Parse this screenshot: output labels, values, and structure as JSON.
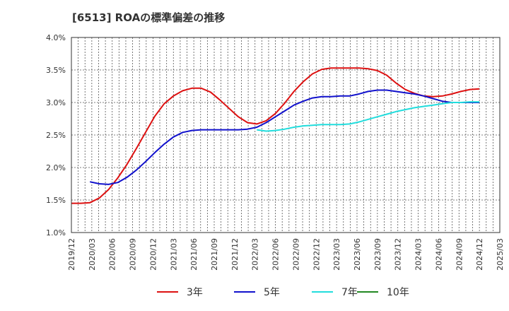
{
  "chart_data": {
    "type": "line",
    "title": "[6513]  ROAの標準偏差の推移",
    "xlabel": "",
    "ylabel": "",
    "x_ticks": [
      "2019/12",
      "2020/03",
      "2020/06",
      "2020/09",
      "2020/12",
      "2021/03",
      "2021/06",
      "2021/09",
      "2021/12",
      "2022/03",
      "2022/06",
      "2022/09",
      "2022/12",
      "2023/03",
      "2023/06",
      "2023/09",
      "2023/12",
      "2024/03",
      "2024/06",
      "2024/09",
      "2024/12",
      "2025/03"
    ],
    "y_ticks": [
      "1.0%",
      "1.5%",
      "2.0%",
      "2.5%",
      "3.0%",
      "3.5%",
      "4.0%"
    ],
    "ylim": [
      1.0,
      4.0
    ],
    "grid": true,
    "legend_position": "bottom",
    "series": [
      {
        "name": "3年",
        "color": "#dd1111",
        "values": [
          1.45,
          1.45,
          1.46,
          1.53,
          1.66,
          1.84,
          2.05,
          2.29,
          2.54,
          2.79,
          2.98,
          3.1,
          3.18,
          3.22,
          3.22,
          3.16,
          3.04,
          2.91,
          2.78,
          2.69,
          2.67,
          2.72,
          2.83,
          2.99,
          3.17,
          3.32,
          3.44,
          3.51,
          3.53,
          3.53,
          3.53,
          3.53,
          3.52,
          3.49,
          3.42,
          3.3,
          3.2,
          3.14,
          3.1,
          3.09,
          3.1,
          3.13,
          3.17,
          3.2,
          3.21
        ]
      },
      {
        "name": "5年",
        "color": "#1111cc",
        "values": [
          null,
          null,
          1.78,
          1.75,
          1.74,
          1.77,
          1.85,
          1.96,
          2.09,
          2.23,
          2.36,
          2.47,
          2.54,
          2.57,
          2.58,
          2.58,
          2.58,
          2.58,
          2.58,
          2.59,
          2.62,
          2.69,
          2.78,
          2.87,
          2.96,
          3.02,
          3.07,
          3.09,
          3.09,
          3.1,
          3.1,
          3.13,
          3.17,
          3.19,
          3.19,
          3.17,
          3.15,
          3.13,
          3.1,
          3.06,
          3.02,
          3.0,
          3.0,
          3.0,
          3.0
        ]
      },
      {
        "name": "7年",
        "color": "#22dddd",
        "values": [
          null,
          null,
          null,
          null,
          null,
          null,
          null,
          null,
          null,
          null,
          null,
          null,
          null,
          null,
          null,
          null,
          null,
          null,
          null,
          null,
          2.58,
          2.56,
          2.57,
          2.59,
          2.62,
          2.64,
          2.65,
          2.66,
          2.66,
          2.66,
          2.67,
          2.7,
          2.74,
          2.78,
          2.82,
          2.86,
          2.89,
          2.92,
          2.94,
          2.96,
          2.98,
          3.0,
          3.0,
          3.01,
          3.01
        ]
      },
      {
        "name": "10年",
        "color": "#228822",
        "values": []
      }
    ]
  }
}
